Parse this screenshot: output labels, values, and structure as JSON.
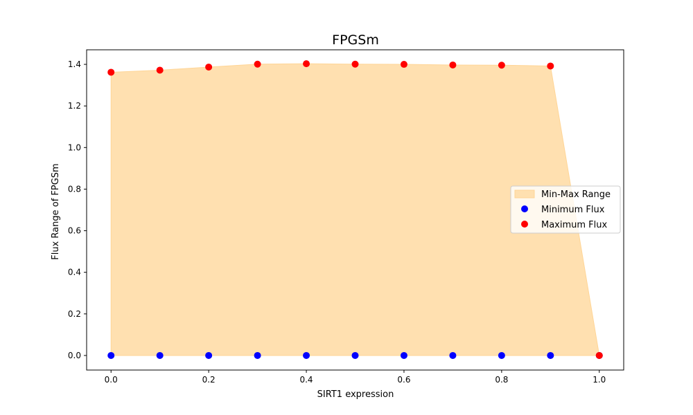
{
  "chart_data": {
    "type": "scatter",
    "title": "FPGSm",
    "xlabel": "SIRT1 expression",
    "ylabel": "Flux Range of FPGSm",
    "xlim": [
      -0.05,
      1.05
    ],
    "ylim": [
      -0.07,
      1.47
    ],
    "x_ticks": [
      "0.0",
      "0.2",
      "0.4",
      "0.6",
      "0.8",
      "1.0"
    ],
    "y_ticks": [
      "0.0",
      "0.2",
      "0.4",
      "0.6",
      "0.8",
      "1.0",
      "1.2",
      "1.4"
    ],
    "grid": false,
    "legend_position": "center-right",
    "x": [
      0.0,
      0.1,
      0.2,
      0.3,
      0.4,
      0.5,
      0.6,
      0.7,
      0.8,
      0.9,
      1.0
    ],
    "series": [
      {
        "name": "Min-Max Range",
        "kind": "area",
        "color": "#FFE0B0",
        "edge_color": "#FFD596",
        "lower": [
          0,
          0,
          0,
          0,
          0,
          0,
          0,
          0,
          0,
          0,
          0
        ],
        "upper": [
          1.362,
          1.372,
          1.387,
          1.401,
          1.403,
          1.401,
          1.4,
          1.397,
          1.396,
          1.392,
          0.0
        ]
      },
      {
        "name": "Minimum Flux",
        "kind": "scatter",
        "color": "#0000FF",
        "values": [
          0,
          0,
          0,
          0,
          0,
          0,
          0,
          0,
          0,
          0,
          0
        ]
      },
      {
        "name": "Maximum Flux",
        "kind": "scatter",
        "color": "#FF0000",
        "values": [
          1.362,
          1.372,
          1.387,
          1.401,
          1.403,
          1.401,
          1.4,
          1.397,
          1.396,
          1.392,
          0.0
        ]
      }
    ]
  }
}
